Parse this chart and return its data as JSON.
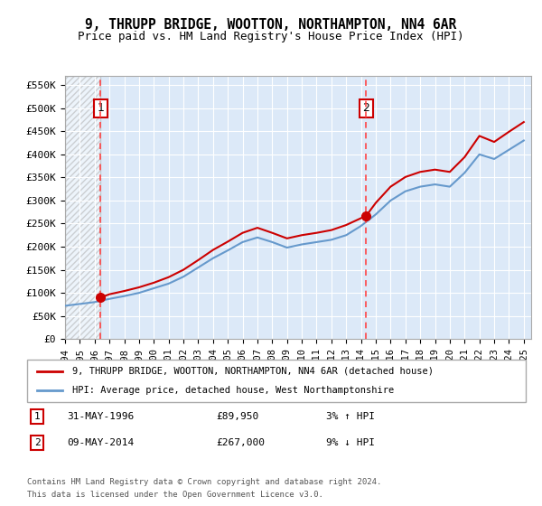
{
  "title": "9, THRUPP BRIDGE, WOOTTON, NORTHAMPTON, NN4 6AR",
  "subtitle": "Price paid vs. HM Land Registry's House Price Index (HPI)",
  "legend_line1": "9, THRUPP BRIDGE, WOOTTON, NORTHAMPTON, NN4 6AR (detached house)",
  "legend_line2": "HPI: Average price, detached house, West Northamptonshire",
  "footer1": "Contains HM Land Registry data © Crown copyright and database right 2024.",
  "footer2": "This data is licensed under the Open Government Licence v3.0.",
  "table_row1": [
    "1",
    "31-MAY-1996",
    "£89,950",
    "3% ↑ HPI"
  ],
  "table_row2": [
    "2",
    "09-MAY-2014",
    "£267,000",
    "9% ↓ HPI"
  ],
  "sale1_year": 1996.41,
  "sale1_price": 89950,
  "sale2_year": 2014.35,
  "sale2_price": 267000,
  "ylim": [
    0,
    570000
  ],
  "xlim_start": 1994,
  "xlim_end": 2025.5,
  "yticks": [
    0,
    50000,
    100000,
    150000,
    200000,
    250000,
    300000,
    350000,
    400000,
    450000,
    500000,
    550000
  ],
  "ytick_labels": [
    "£0",
    "£50K",
    "£100K",
    "£150K",
    "£200K",
    "£250K",
    "£300K",
    "£350K",
    "£400K",
    "£450K",
    "£500K",
    "£550K"
  ],
  "xticks": [
    1994,
    1995,
    1996,
    1997,
    1998,
    1999,
    2000,
    2001,
    2002,
    2003,
    2004,
    2005,
    2006,
    2007,
    2008,
    2009,
    2010,
    2011,
    2012,
    2013,
    2014,
    2015,
    2016,
    2017,
    2018,
    2019,
    2020,
    2021,
    2022,
    2023,
    2024,
    2025
  ],
  "plot_bg": "#dce9f8",
  "line_color_red": "#cc0000",
  "line_color_blue": "#6699cc",
  "hatch_color": "#cccccc",
  "vline_color": "#ff4444",
  "marker_color": "#cc0000",
  "hpi_years": [
    1994,
    1995,
    1996,
    1997,
    1998,
    1999,
    2000,
    2001,
    2002,
    2003,
    2004,
    2005,
    2006,
    2007,
    2008,
    2009,
    2010,
    2011,
    2012,
    2013,
    2014,
    2015,
    2016,
    2017,
    2018,
    2019,
    2020,
    2021,
    2022,
    2023,
    2024,
    2025
  ],
  "hpi_values": [
    72000,
    76000,
    80000,
    87000,
    93000,
    100000,
    110000,
    120000,
    135000,
    155000,
    175000,
    192000,
    210000,
    220000,
    210000,
    198000,
    205000,
    210000,
    215000,
    225000,
    245000,
    270000,
    300000,
    320000,
    330000,
    335000,
    330000,
    360000,
    400000,
    390000,
    410000,
    430000
  ],
  "prop_years": [
    1996.41,
    1997,
    1998,
    1999,
    2000,
    2001,
    2002,
    2003,
    2004,
    2005,
    2006,
    2007,
    2008,
    2009,
    2010,
    2011,
    2012,
    2013,
    2014.35,
    2015,
    2016,
    2017,
    2018,
    2019,
    2020,
    2021,
    2022,
    2023,
    2024,
    2025
  ],
  "prop_values": [
    89950,
    97000,
    104000,
    112000,
    122000,
    134000,
    150000,
    171000,
    193000,
    211000,
    230000,
    241000,
    230000,
    218000,
    225000,
    230000,
    236000,
    247000,
    267000,
    295000,
    330000,
    351000,
    362000,
    367000,
    362000,
    394000,
    440000,
    427000,
    449000,
    470000
  ]
}
